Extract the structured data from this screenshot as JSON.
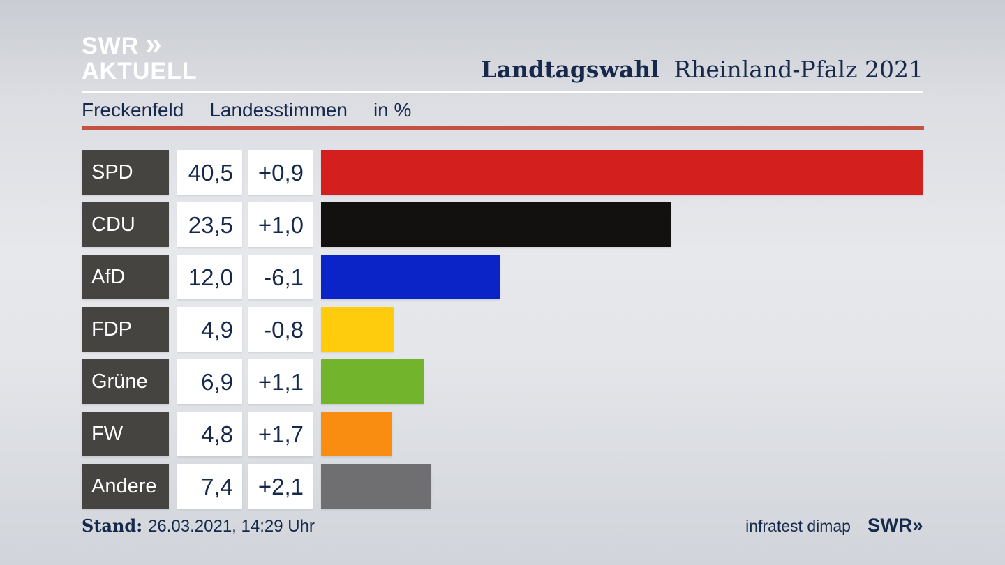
{
  "brand": {
    "logo_line1": "SWR",
    "logo_chevron": "»",
    "logo_line2": "AKTUELL"
  },
  "header": {
    "title_bold": "Landtagswahl",
    "title_rest": "Rheinland-Pfalz 2021"
  },
  "subheader": {
    "region": "Freckenfeld",
    "measure": "Landesstimmen",
    "unit": "in %"
  },
  "chart_data": {
    "type": "bar",
    "orientation": "horizontal",
    "title": "Landtagswahl Rheinland-Pfalz 2021",
    "subtitle": "Freckenfeld Landesstimmen in %",
    "unit": "%",
    "axis_max": 40.5,
    "grid": false,
    "legend": false,
    "categories": [
      "SPD",
      "CDU",
      "AfD",
      "FDP",
      "Grüne",
      "FW",
      "Andere"
    ],
    "series": [
      {
        "name": "value",
        "values": [
          40.5,
          23.5,
          12.0,
          4.9,
          6.9,
          4.8,
          7.4
        ]
      },
      {
        "name": "change",
        "values": [
          0.9,
          1.0,
          -6.1,
          -0.8,
          1.1,
          1.7,
          2.1
        ]
      }
    ],
    "rows": [
      {
        "party": "SPD",
        "value": 40.5,
        "value_label": "40,5",
        "diff_label": "+0,9",
        "color": "#d41f1f"
      },
      {
        "party": "CDU",
        "value": 23.5,
        "value_label": "23,5",
        "diff_label": "+1,0",
        "color": "#131110"
      },
      {
        "party": "AfD",
        "value": 12.0,
        "value_label": "12,0",
        "diff_label": "-6,1",
        "color": "#0b24c8"
      },
      {
        "party": "FDP",
        "value": 4.9,
        "value_label": "4,9",
        "diff_label": "-0,8",
        "color": "#ffcc0d"
      },
      {
        "party": "Grüne",
        "value": 6.9,
        "value_label": "6,9",
        "diff_label": "+1,1",
        "color": "#72b42b"
      },
      {
        "party": "FW",
        "value": 4.8,
        "value_label": "4,8",
        "diff_label": "+1,7",
        "color": "#f98d12"
      },
      {
        "party": "Andere",
        "value": 7.4,
        "value_label": "7,4",
        "diff_label": "+2,1",
        "color": "#6f6f71"
      }
    ]
  },
  "footer": {
    "stand_label": "Stand:",
    "stand_value": "26.03.2021, 14:29 Uhr",
    "source": "infratest dimap",
    "source_logo_text": "SWR",
    "source_logo_chevron": "»"
  },
  "colors": {
    "text_navy": "#17294b",
    "accent_rule": "#c2543f",
    "title_rule": "#ffffff",
    "party_box": "#454440"
  }
}
